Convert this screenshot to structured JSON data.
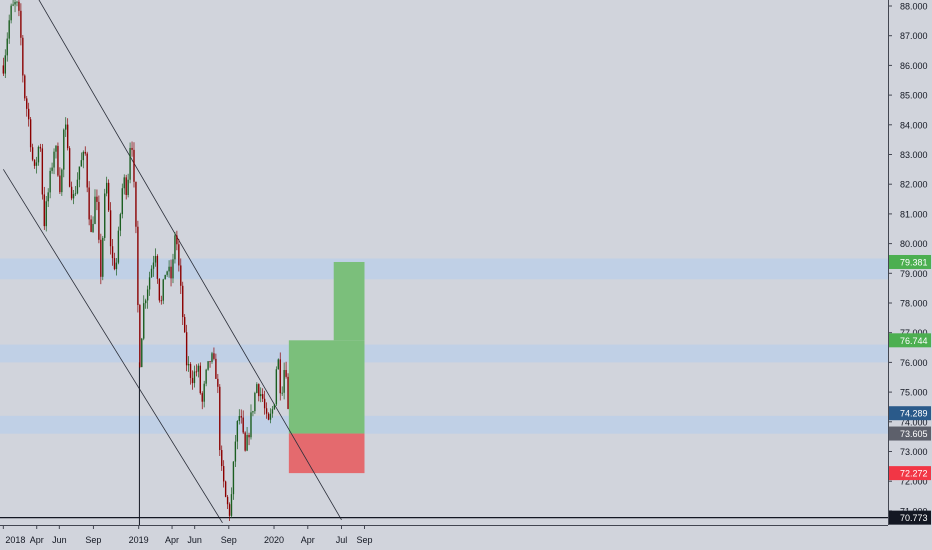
{
  "chart_data": {
    "type": "candlestick",
    "title": "",
    "xlabel": "",
    "ylabel": "",
    "ylim": [
      70.6,
      88.2
    ],
    "grid": false,
    "x_ticks": [
      "2018",
      "Apr",
      "Jun",
      "Sep",
      "2019",
      "Apr",
      "Jun",
      "Sep",
      "2020",
      "Apr",
      "Jul",
      "Sep"
    ],
    "y_ticks": [
      "71.000",
      "72.000",
      "73.000",
      "74.000",
      "75.000",
      "76.000",
      "77.000",
      "78.000",
      "79.000",
      "80.000",
      "81.000",
      "82.000",
      "83.000",
      "84.000",
      "85.000",
      "86.000",
      "87.000",
      "88.000"
    ],
    "price_path": [
      [
        "2018-01-01",
        86.0
      ],
      [
        "2018-01-20",
        87.8
      ],
      [
        "2018-02-05",
        88.1
      ],
      [
        "2018-02-15",
        87.4
      ],
      [
        "2018-02-25",
        85.2
      ],
      [
        "2018-03-10",
        84.2
      ],
      [
        "2018-03-25",
        82.3
      ],
      [
        "2018-04-10",
        83.6
      ],
      [
        "2018-04-20",
        80.6
      ],
      [
        "2018-05-05",
        82.0
      ],
      [
        "2018-05-20",
        83.4
      ],
      [
        "2018-06-05",
        81.7
      ],
      [
        "2018-06-15",
        84.3
      ],
      [
        "2018-06-30",
        82.0
      ],
      [
        "2018-07-10",
        81.5
      ],
      [
        "2018-07-25",
        82.6
      ],
      [
        "2018-08-10",
        83.0
      ],
      [
        "2018-08-25",
        80.2
      ],
      [
        "2018-09-08",
        81.8
      ],
      [
        "2018-09-20",
        78.8
      ],
      [
        "2018-10-05",
        82.3
      ],
      [
        "2018-10-20",
        79.5
      ],
      [
        "2018-11-01",
        79.2
      ],
      [
        "2018-11-20",
        82.2
      ],
      [
        "2018-12-01",
        81.8
      ],
      [
        "2018-12-12",
        84.0
      ],
      [
        "2018-12-25",
        80.2
      ],
      [
        "2019-01-03",
        75.9
      ],
      [
        "2019-01-15",
        78.0
      ],
      [
        "2019-02-01",
        79.0
      ],
      [
        "2019-02-15",
        79.8
      ],
      [
        "2019-03-01",
        77.8
      ],
      [
        "2019-03-15",
        79.2
      ],
      [
        "2019-04-01",
        78.8
      ],
      [
        "2019-04-10",
        80.6
      ],
      [
        "2019-04-25",
        78.3
      ],
      [
        "2019-05-10",
        76.0
      ],
      [
        "2019-05-25",
        75.5
      ],
      [
        "2019-06-10",
        75.8
      ],
      [
        "2019-06-20",
        74.5
      ],
      [
        "2019-07-01",
        75.5
      ],
      [
        "2019-07-15",
        76.2
      ],
      [
        "2019-08-01",
        75.5
      ],
      [
        "2019-08-10",
        72.5
      ],
      [
        "2019-08-25",
        71.3
      ],
      [
        "2019-09-05",
        70.9
      ],
      [
        "2019-09-20",
        73.6
      ],
      [
        "2019-10-01",
        74.3
      ],
      [
        "2019-10-15",
        72.9
      ],
      [
        "2019-11-01",
        74.2
      ],
      [
        "2019-11-15",
        75.3
      ],
      [
        "2019-12-01",
        74.8
      ],
      [
        "2019-12-15",
        73.8
      ],
      [
        "2020-01-01",
        74.6
      ],
      [
        "2020-01-10",
        76.4
      ],
      [
        "2020-01-20",
        74.9
      ],
      [
        "2020-02-01",
        76.2
      ],
      [
        "2020-02-08",
        74.3
      ]
    ],
    "zones": [
      {
        "label": "zone-79",
        "from": 78.8,
        "to": 79.5
      },
      {
        "label": "zone-76",
        "from": 76.0,
        "to": 76.6
      },
      {
        "label": "zone-74",
        "from": 73.6,
        "to": 74.2
      }
    ],
    "trend_lines": [
      {
        "label": "upper-trendline",
        "start": [
          "2018-03-01",
          89.0
        ],
        "end": [
          "2020-07-01",
          70.7
        ]
      },
      {
        "label": "lower-trendline",
        "start": [
          "2018-01-01",
          82.5
        ],
        "end": [
          "2019-08-15",
          70.6
        ]
      }
    ],
    "support_line": {
      "value": 70.773,
      "label": "70.773"
    },
    "event_line": {
      "date": "2019-01-03"
    },
    "position": {
      "start": "2020-02-10",
      "end": "2020-09-01",
      "step_date": "2020-06-10",
      "entry": 73.605,
      "target_1": 76.744,
      "target_2": 79.381,
      "stop": 72.272
    },
    "price_labels": [
      {
        "value": 79.381,
        "text": "79.381",
        "color": "#4caf50"
      },
      {
        "value": 76.744,
        "text": "76.744",
        "color": "#4caf50"
      },
      {
        "value": 74.289,
        "text": "74.289",
        "color": "#2a5a8a"
      },
      {
        "value": 73.605,
        "text": "73.605",
        "color": "#5d606b"
      },
      {
        "value": 72.272,
        "text": "72.272",
        "color": "#f23645"
      },
      {
        "value": 70.773,
        "text": "70.773",
        "color": "#131722"
      }
    ],
    "colors": {
      "background": "#d1d4dc",
      "up": "#1b5e20",
      "down": "#8b0000",
      "zone": "#bfd0e6",
      "reward": "#7bbf7b",
      "risk": "#e46a6e",
      "axis_text": "#131722"
    }
  }
}
